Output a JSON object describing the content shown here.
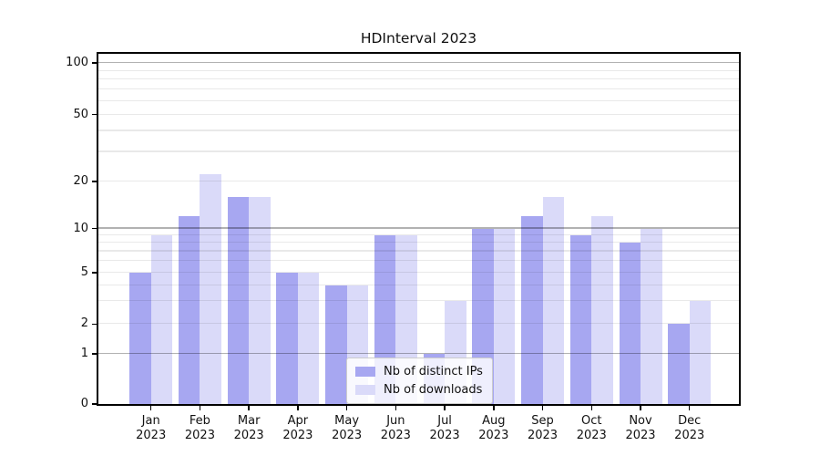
{
  "title": "HDInterval 2023",
  "chart_data": {
    "type": "bar",
    "title": "HDInterval 2023",
    "categories": [
      "Jan 2023",
      "Feb 2023",
      "Mar 2023",
      "Apr 2023",
      "May 2023",
      "Jun 2023",
      "Jul 2023",
      "Aug 2023",
      "Sep 2023",
      "Oct 2023",
      "Nov 2023",
      "Dec 2023"
    ],
    "x_tick_labels": [
      "Jan\n2023",
      "Feb\n2023",
      "Mar\n2023",
      "Apr\n2023",
      "May\n2023",
      "Jun\n2023",
      "Jul\n2023",
      "Aug\n2023",
      "Sep\n2023",
      "Oct\n2023",
      "Nov\n2023",
      "Dec\n2023"
    ],
    "series": [
      {
        "name": "Nb of distinct IPs",
        "color": "#a7a7f1",
        "values": [
          5,
          12,
          16,
          5,
          4,
          9,
          1,
          10,
          12,
          9,
          8,
          2
        ]
      },
      {
        "name": "Nb of downloads",
        "color": "#dadaf9",
        "values": [
          9,
          22,
          16,
          5,
          4,
          9,
          3,
          10,
          16,
          12,
          10,
          3
        ]
      }
    ],
    "xlabel": "",
    "ylabel": "",
    "yscale": "symlog",
    "ylim": [
      0,
      110
    ],
    "yticks": [
      0,
      1,
      2,
      5,
      10,
      20,
      50,
      100
    ],
    "y_tick_labels": [
      "0",
      "1",
      "2",
      "5",
      "10",
      "20",
      "50",
      "100"
    ],
    "major_gridlines": [
      1,
      10,
      100
    ],
    "light_gridlines": [
      2,
      5,
      20,
      50
    ],
    "minor_gridlines": [
      3,
      4,
      6,
      7,
      8,
      9,
      30,
      40,
      60,
      70,
      80,
      90
    ],
    "grid": true,
    "legend_position": "lower center"
  },
  "legend": {
    "items": [
      {
        "label": "Nb of distinct IPs"
      },
      {
        "label": "Nb of downloads"
      }
    ]
  }
}
